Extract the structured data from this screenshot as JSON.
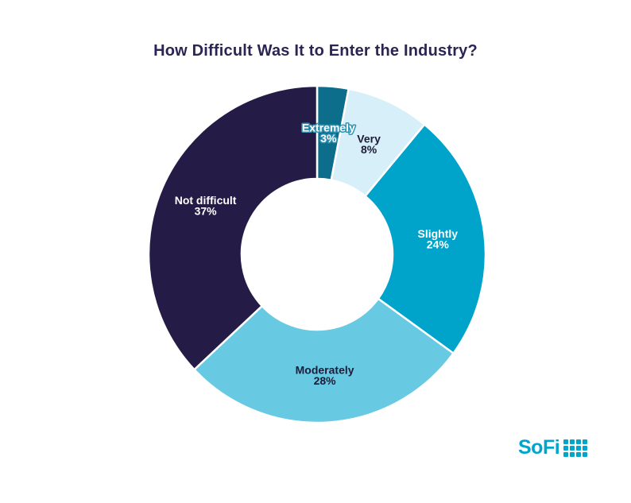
{
  "page": {
    "background": "#FFFFFF"
  },
  "header": {
    "title": "How Difficult Was It to Enter the Industry?",
    "title_color": "#2A2553"
  },
  "chart_data": {
    "type": "pie",
    "subtype": "donut",
    "title": "How Difficult Was It to Enter the Industry?",
    "direction": "clockwise",
    "start_angle_deg": -90,
    "inner_radius_ratio": 0.45,
    "separator_color": "#FFFFFF",
    "unit": "%",
    "categories": [
      "Extremely",
      "Very",
      "Slightly",
      "Moderately",
      "Not difficult"
    ],
    "values": [
      3,
      8,
      24,
      28,
      37
    ],
    "segments": [
      {
        "label": "Extremely",
        "value": 3,
        "display": "3%",
        "color": "#0D6E8C",
        "label_color": "#FFFFFF",
        "label_outline_color": "#2F93B4"
      },
      {
        "label": "Very",
        "value": 8,
        "display": "8%",
        "color": "#D6EFF8",
        "label_color": "#1E1B39"
      },
      {
        "label": "Slightly",
        "value": 24,
        "display": "24%",
        "color": "#00A3CA",
        "label_color": "#FFFFFF"
      },
      {
        "label": "Moderately",
        "value": 28,
        "display": "28%",
        "color": "#68C9E2",
        "label_color": "#1E1B39"
      },
      {
        "label": "Not difficult",
        "value": 37,
        "display": "37%",
        "color": "#241C47",
        "label_color": "#FFFFFF"
      }
    ]
  },
  "footer": {
    "logo_text": "SoFi",
    "logo_color": "#00A5CB"
  }
}
